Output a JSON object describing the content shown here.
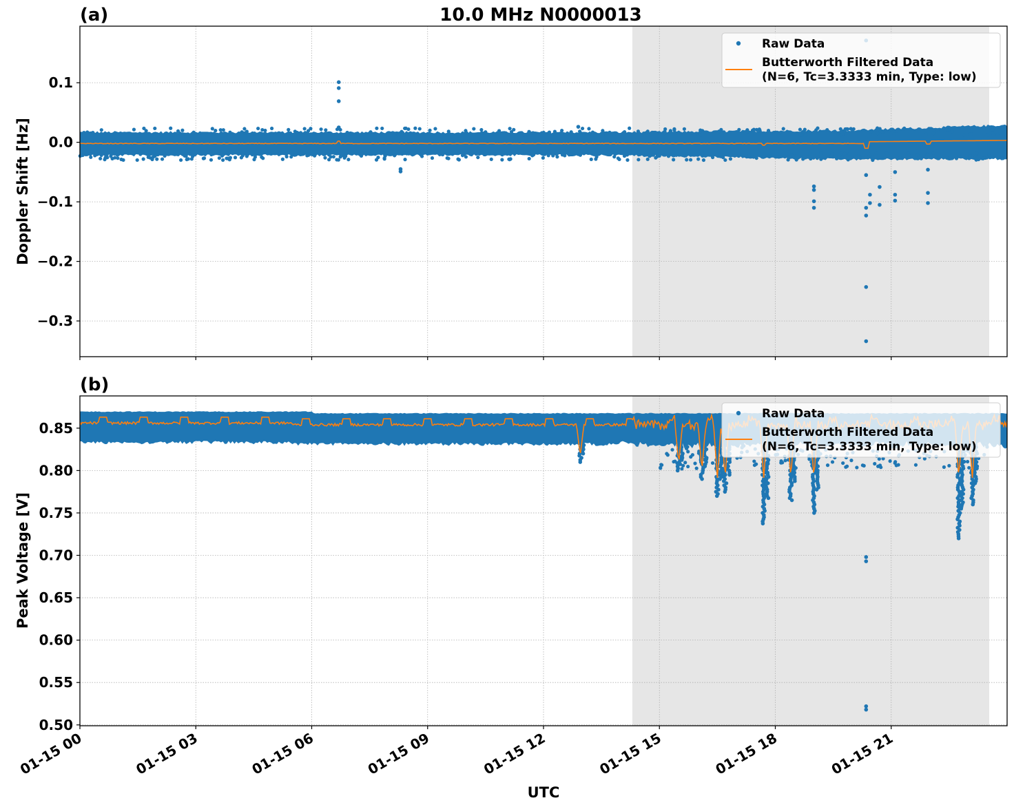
{
  "figure": {
    "title": "10.0 MHz N0000013",
    "xlabel": "UTC"
  },
  "colors": {
    "raw": "#1f77b4",
    "filtered": "#ff7f0e",
    "shade": "#e6e6e6",
    "grid": "#b0b0b0"
  },
  "legend": {
    "raw_label": "Raw Data",
    "filtered_label_line1": "Butterworth Filtered Data",
    "filtered_label_line2": "(N=6, Tc=3.3333 min, Type: low)"
  },
  "panels": [
    {
      "label": "(a)",
      "ylabel": "Doppler Shift [Hz]",
      "yticks": [
        "0.1",
        "0.0",
        "−0.1",
        "−0.2",
        "−0.3"
      ]
    },
    {
      "label": "(b)",
      "ylabel": "Peak Voltage [V]",
      "yticks": [
        "0.85",
        "0.80",
        "0.75",
        "0.70",
        "0.65",
        "0.60",
        "0.55",
        "0.50"
      ]
    }
  ],
  "xticks": [
    "01-15 00",
    "01-15 03",
    "01-15 06",
    "01-15 09",
    "01-15 12",
    "01-15 15",
    "01-15 18",
    "01-15 21"
  ],
  "chart_data": [
    {
      "type": "scatter",
      "title": "10.0 MHz N0000013",
      "panel": "(a)",
      "xlabel": "UTC",
      "ylabel": "Doppler Shift [Hz]",
      "x_ticks": [
        "01-15 00",
        "01-15 03",
        "01-15 06",
        "01-15 09",
        "01-15 12",
        "01-15 15",
        "01-15 18",
        "01-15 21"
      ],
      "xlim_hours": [
        0,
        24
      ],
      "ylim": [
        -0.36,
        0.195
      ],
      "y_ticks": [
        0.1,
        0.0,
        -0.1,
        -0.2,
        -0.3
      ],
      "grid": true,
      "legend_position": "upper right",
      "shaded_interval_hours": [
        14.3,
        23.55
      ],
      "series": [
        {
          "name": "Raw Data",
          "style": "points",
          "band_center": 0.0,
          "band_low": -0.02,
          "band_high": 0.015,
          "outliers": [
            {
              "x_hours": 6.7,
              "y": 0.101
            },
            {
              "x_hours": 6.7,
              "y": 0.091
            },
            {
              "x_hours": 6.7,
              "y": 0.069
            },
            {
              "x_hours": 6.7,
              "y": 0.025
            },
            {
              "x_hours": 8.3,
              "y": -0.045
            },
            {
              "x_hours": 8.3,
              "y": -0.049
            },
            {
              "x_hours": 12.9,
              "y": 0.026
            },
            {
              "x_hours": 19.0,
              "y": -0.074
            },
            {
              "x_hours": 19.0,
              "y": -0.08
            },
            {
              "x_hours": 19.0,
              "y": -0.099
            },
            {
              "x_hours": 19.0,
              "y": -0.11
            },
            {
              "x_hours": 20.35,
              "y": -0.055
            },
            {
              "x_hours": 20.35,
              "y": -0.11
            },
            {
              "x_hours": 20.35,
              "y": -0.123
            },
            {
              "x_hours": 20.35,
              "y": -0.243
            },
            {
              "x_hours": 20.35,
              "y": -0.334
            },
            {
              "x_hours": 20.45,
              "y": -0.088
            },
            {
              "x_hours": 20.45,
              "y": -0.102
            },
            {
              "x_hours": 20.7,
              "y": -0.075
            },
            {
              "x_hours": 20.7,
              "y": -0.105
            },
            {
              "x_hours": 21.1,
              "y": -0.05
            },
            {
              "x_hours": 21.1,
              "y": -0.088
            },
            {
              "x_hours": 21.1,
              "y": -0.098
            },
            {
              "x_hours": 21.95,
              "y": -0.046
            },
            {
              "x_hours": 21.95,
              "y": -0.085
            },
            {
              "x_hours": 21.95,
              "y": -0.102
            },
            {
              "x_hours": 20.35,
              "y": 0.171
            }
          ]
        },
        {
          "name": "Butterworth Filtered Data (N=6, Tc=3.3333 min, Type: low)",
          "style": "line",
          "x_hours": [
            0,
            3,
            6,
            9,
            12,
            15,
            18,
            19.0,
            20.35,
            21.0,
            22,
            24
          ],
          "y": [
            -0.002,
            -0.002,
            -0.002,
            -0.002,
            -0.002,
            -0.002,
            -0.001,
            -0.005,
            -0.01,
            0.001,
            0.002,
            0.003
          ]
        }
      ]
    },
    {
      "type": "scatter",
      "panel": "(b)",
      "xlabel": "UTC",
      "ylabel": "Peak Voltage [V]",
      "x_ticks": [
        "01-15 00",
        "01-15 03",
        "01-15 06",
        "01-15 09",
        "01-15 12",
        "01-15 15",
        "01-15 18",
        "01-15 21"
      ],
      "xlim_hours": [
        0,
        24
      ],
      "ylim": [
        0.499,
        0.888
      ],
      "y_ticks": [
        0.85,
        0.8,
        0.75,
        0.7,
        0.65,
        0.6,
        0.55,
        0.5
      ],
      "grid": true,
      "legend_position": "upper right",
      "shaded_interval_hours": [
        14.3,
        23.55
      ],
      "series": [
        {
          "name": "Raw Data",
          "style": "points",
          "band_low": 0.835,
          "band_high": 0.869,
          "dips": [
            {
              "x_hours": 12.95,
              "min": 0.81
            },
            {
              "x_hours": 15.5,
              "min": 0.8
            },
            {
              "x_hours": 16.1,
              "min": 0.79
            },
            {
              "x_hours": 16.5,
              "min": 0.77
            },
            {
              "x_hours": 16.7,
              "min": 0.775
            },
            {
              "x_hours": 17.7,
              "min": 0.737
            },
            {
              "x_hours": 18.4,
              "min": 0.765
            },
            {
              "x_hours": 19.0,
              "min": 0.75
            },
            {
              "x_hours": 22.75,
              "min": 0.72
            },
            {
              "x_hours": 23.1,
              "min": 0.76
            }
          ],
          "outliers": [
            {
              "x_hours": 20.35,
              "y": 0.698
            },
            {
              "x_hours": 20.35,
              "y": 0.693
            },
            {
              "x_hours": 20.35,
              "y": 0.522
            },
            {
              "x_hours": 20.35,
              "y": 0.518
            }
          ]
        },
        {
          "name": "Butterworth Filtered Data (N=6, Tc=3.3333 min, Type: low)",
          "style": "line",
          "baseline": 0.855,
          "step_high": 0.863,
          "x_hours": [
            0,
            3,
            6,
            9,
            12,
            12.95,
            15.5,
            16.1,
            17.7,
            22.75,
            24
          ],
          "y": [
            0.857,
            0.856,
            0.853,
            0.852,
            0.852,
            0.836,
            0.83,
            0.81,
            0.78,
            0.785,
            0.846
          ]
        }
      ]
    }
  ]
}
